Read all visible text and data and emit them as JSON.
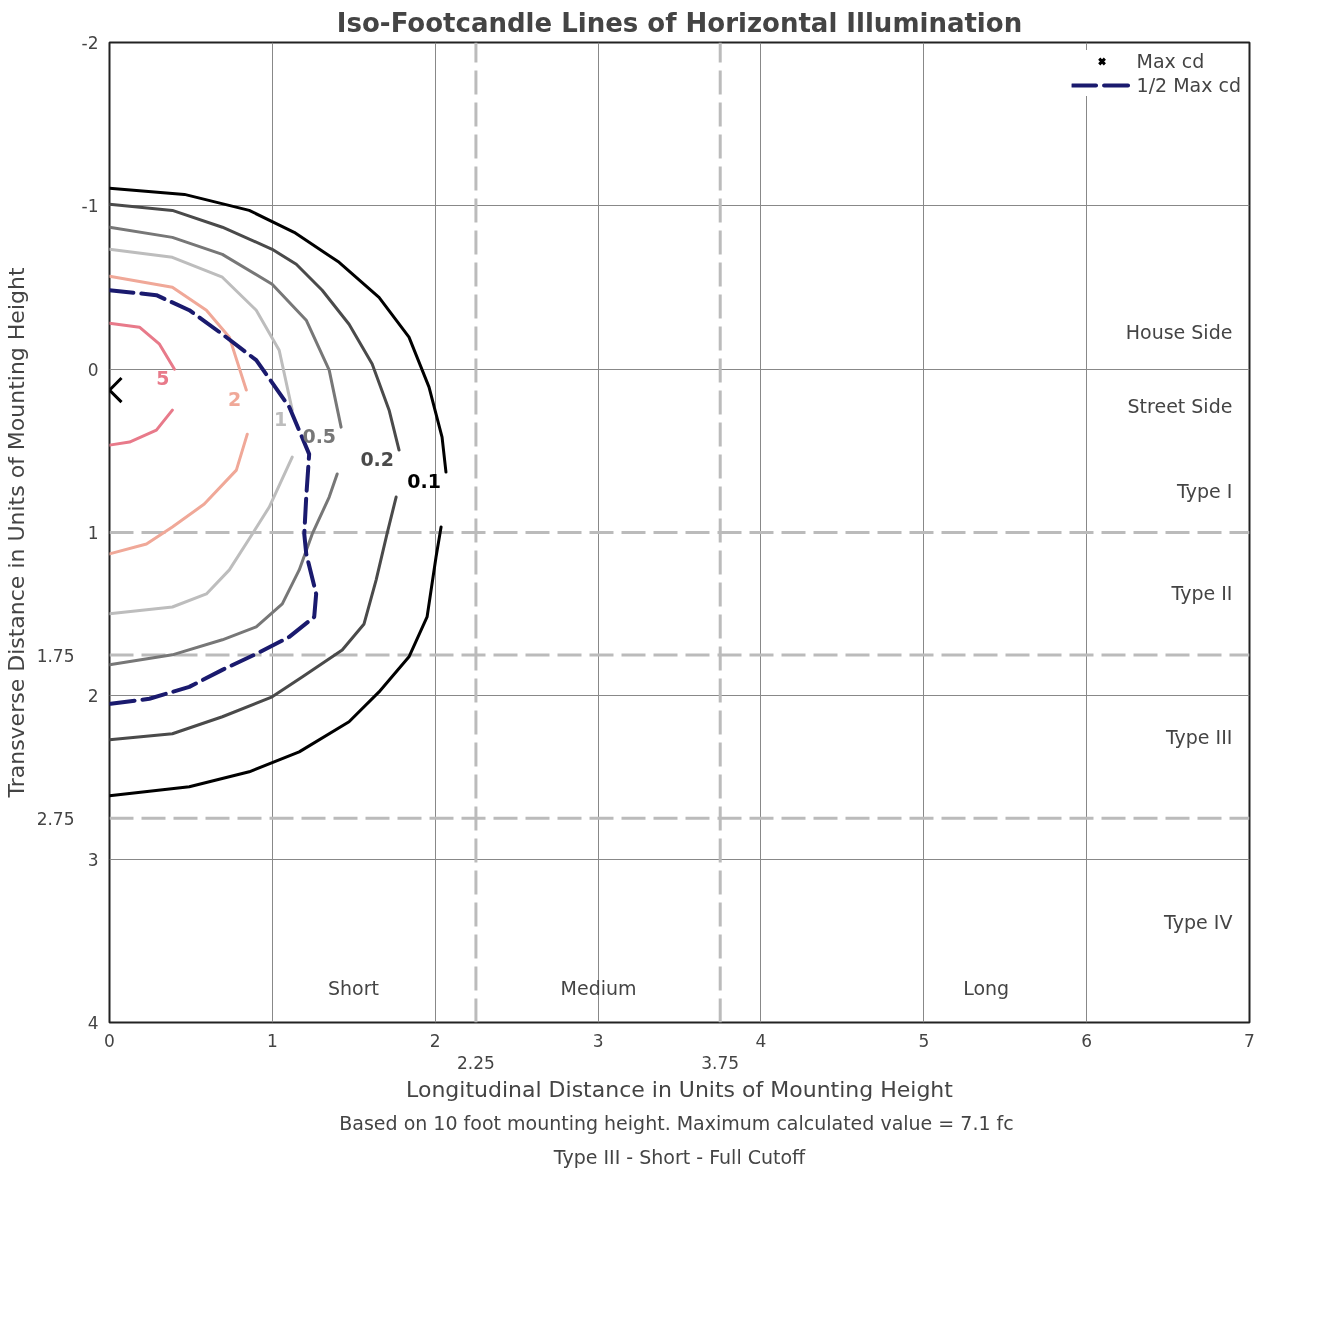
{
  "chart_data": {
    "type": "line",
    "title": "Iso-Footcandle Lines of Horizontal Illumination",
    "xlabel": "Longitudinal Distance in Units of Mounting Height",
    "ylabel": "Transverse Distance in Units of Mounting Height",
    "xlim": [
      0,
      7
    ],
    "ylim": [
      4,
      -2
    ],
    "xticks": [
      0,
      1,
      2,
      3,
      4,
      5,
      6,
      7
    ],
    "yticks": [
      -2,
      -1,
      0,
      1,
      2,
      3,
      4
    ],
    "grid": true,
    "legend": "top right",
    "line_style": "solid",
    "marker": "none",
    "series": [
      {
        "name": "0.1",
        "color": "#000000",
        "x": [
          0,
          0.46,
          0.858,
          1.134,
          1.41,
          1.655,
          1.839,
          1.962,
          2.042,
          2.066,
          null,
          2.036,
          2.005,
          1.95,
          1.839,
          1.655,
          1.471,
          1.165,
          0.858,
          0.49,
          0
        ],
        "values": [
          -1.107,
          -1.07,
          -0.972,
          -0.838,
          -0.654,
          -0.44,
          -0.196,
          0.11,
          0.416,
          0.63,
          null,
          0.966,
          1.15,
          1.517,
          1.761,
          1.976,
          2.159,
          2.343,
          2.465,
          2.557,
          2.612
        ]
      },
      {
        "name": "0.2",
        "color": "#4a4a4a",
        "x": [
          0,
          0.386,
          0.693,
          0.999,
          1.147,
          1.306,
          1.471,
          1.613,
          1.717,
          1.778,
          null,
          1.76,
          1.704,
          1.637,
          1.563,
          1.429,
          1.183,
          0.999,
          0.693,
          0.386,
          0
        ],
        "values": [
          -1.009,
          -0.972,
          -0.869,
          -0.734,
          -0.642,
          -0.483,
          -0.275,
          -0.031,
          0.251,
          0.495,
          null,
          0.783,
          1.009,
          1.291,
          1.56,
          1.719,
          1.884,
          2.006,
          2.128,
          2.232,
          2.269
        ]
      },
      {
        "name": "0.5",
        "color": "#777777",
        "x": [
          0,
          0.386,
          0.693,
          0.999,
          1.208,
          1.349,
          1.422,
          null,
          1.398,
          1.349,
          1.245,
          1.165,
          1.061,
          0.901,
          0.693,
          0.386,
          0
        ],
        "values": [
          -0.869,
          -0.807,
          -0.703,
          -0.52,
          -0.3,
          0.006,
          0.355,
          null,
          0.642,
          0.783,
          1.009,
          1.229,
          1.437,
          1.578,
          1.657,
          1.749,
          1.81
        ]
      },
      {
        "name": "1",
        "color": "#bdbdbd",
        "x": [
          0,
          0.386,
          0.693,
          0.901,
          1.042,
          1.122,
          null,
          1.122,
          0.981,
          0.877,
          0.736,
          0.595,
          0.386,
          0
        ],
        "values": [
          -0.734,
          -0.685,
          -0.563,
          -0.361,
          -0.116,
          0.251,
          null,
          0.538,
          0.844,
          1.009,
          1.229,
          1.376,
          1.456,
          1.498
        ]
      },
      {
        "name": "2",
        "color": "#f0a898",
        "x": [
          0,
          0.386,
          0.595,
          0.736,
          0.84,
          null,
          0.846,
          0.779,
          0.582,
          0.386,
          0.227,
          0
        ],
        "values": [
          -0.569,
          -0.502,
          -0.361,
          -0.196,
          0.128,
          null,
          0.398,
          0.618,
          0.826,
          0.966,
          1.07,
          1.131
        ]
      },
      {
        "name": "5",
        "color": "#e87a8a",
        "x": [
          0,
          0.184,
          0.307,
          0.399,
          null,
          0.386,
          0.288,
          0.123,
          0
        ],
        "values": [
          -0.281,
          -0.257,
          -0.153,
          0,
          null,
          0.251,
          0.373,
          0.446,
          0.465
        ]
      },
      {
        "name": "Max cd",
        "type": "scatter",
        "marker": "cross",
        "color": "#000000",
        "x": [
          0
        ],
        "values": [
          0.128
        ]
      },
      {
        "name": "1/2 Max cd",
        "line_style": "dashed",
        "color": "#1a1a6e",
        "x": [
          0,
          0.288,
          0.49,
          0.693,
          0.901,
          1.104,
          1.226,
          1.208,
          1.196,
          1.208,
          1.269,
          1.257,
          1.104,
          0.901,
          0.693,
          0.49,
          0.245,
          0
        ],
        "values": [
          -0.483,
          -0.453,
          -0.361,
          -0.214,
          -0.055,
          0.232,
          0.52,
          0.783,
          1.009,
          1.131,
          1.376,
          1.517,
          1.639,
          1.743,
          1.841,
          1.945,
          2.018,
          2.049
        ]
      }
    ],
    "ref_lines": [
      {
        "axis": "x",
        "value": 2.25,
        "label": "2.25",
        "color": "#bbbbbb",
        "line_style": "dashed"
      },
      {
        "axis": "x",
        "value": 3.75,
        "label": "3.75",
        "color": "#bbbbbb",
        "line_style": "dashed"
      },
      {
        "axis": "y",
        "value": 1,
        "color": "#bbbbbb",
        "line_style": "dashed"
      },
      {
        "axis": "y",
        "value": 1.75,
        "label": "1.75",
        "color": "#bbbbbb",
        "line_style": "dashed"
      },
      {
        "axis": "y",
        "value": 2.75,
        "label": "2.75",
        "color": "#bbbbbb",
        "line_style": "dashed"
      }
    ],
    "annotations": [
      "House Side",
      "Street Side",
      "Type I",
      "Type II",
      "Type III",
      "Type IV",
      "Short",
      "Medium",
      "Long",
      "Based on 10 foot mounting height.  Maximum calculated value = 7.1 fc",
      "Type III - Short - Full Cutoff"
    ]
  }
}
